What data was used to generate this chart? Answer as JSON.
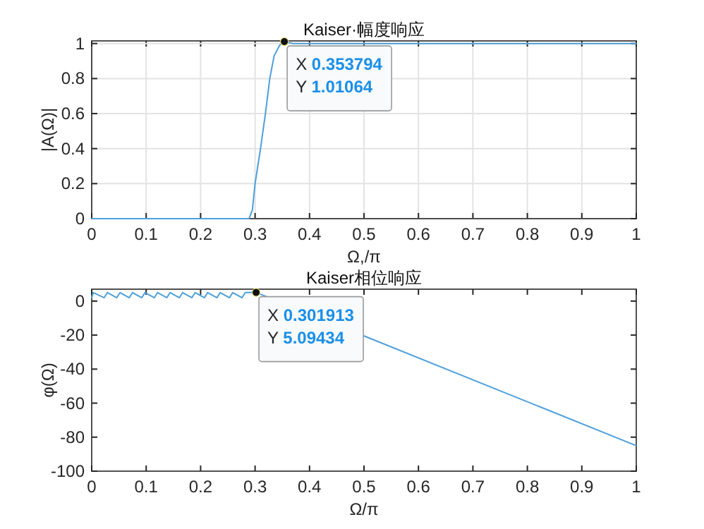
{
  "chart_data": [
    {
      "type": "line",
      "title": "Kaiser·幅度响应",
      "xlabel": "Ω,/π",
      "ylabel": "|A(Ω)|",
      "xlim": [
        0,
        1
      ],
      "ylim": [
        0,
        1.015
      ],
      "xticks": [
        0,
        0.1,
        0.2,
        0.3,
        0.4,
        0.5,
        0.6,
        0.7,
        0.8,
        0.9,
        1
      ],
      "yticks": [
        0,
        0.2,
        0.4,
        0.6,
        0.8,
        1
      ],
      "grid": true,
      "marker": "none",
      "line_style": "solid",
      "series": [
        {
          "color": "#4d9fdb",
          "x": [
            0,
            0.1,
            0.2,
            0.28,
            0.289,
            0.295,
            0.3,
            0.31,
            0.319,
            0.327,
            0.335,
            0.345,
            0.353794,
            0.37,
            0.5,
            0.7,
            1
          ],
          "values": [
            0,
            0,
            0,
            0,
            0,
            0.05,
            0.2,
            0.4,
            0.6,
            0.8,
            0.93,
            0.99,
            1.01064,
            1,
            1,
            1,
            1
          ]
        }
      ],
      "annotations": [
        "X **0.353794**",
        "Y **1.01064**"
      ]
    },
    {
      "type": "line",
      "title": "Kaiser相位响应",
      "xlabel": "Ω/π",
      "ylabel": "φ(Ω)",
      "xlim": [
        0,
        1
      ],
      "ylim": [
        -100,
        7
      ],
      "xticks": [
        0,
        0.1,
        0.2,
        0.3,
        0.4,
        0.5,
        0.6,
        0.7,
        0.8,
        0.9,
        1
      ],
      "yticks": [
        -100,
        -80,
        -60,
        -40,
        -20,
        0
      ],
      "grid": false,
      "marker": "none",
      "line_style": "solid",
      "series": [
        {
          "color": "#4d9fdb",
          "x": [
            0,
            0.003,
            0.023,
            0.029,
            0.046,
            0.052,
            0.069,
            0.075,
            0.092,
            0.098,
            0.115,
            0.121,
            0.138,
            0.144,
            0.161,
            0.167,
            0.184,
            0.19,
            0.207,
            0.213,
            0.23,
            0.236,
            0.253,
            0.259,
            0.276,
            0.282,
            0.301913,
            0.5,
            1
          ],
          "values": [
            2,
            5,
            2,
            5,
            2,
            5,
            2,
            5,
            2,
            5,
            2,
            5,
            2,
            5,
            2,
            5,
            2,
            5,
            2,
            5,
            2,
            5,
            2,
            5,
            2,
            5,
            5.09434,
            -20.5,
            -85
          ]
        }
      ],
      "annotations": [
        "X **0.301913**",
        "Y **5.09434**"
      ]
    }
  ]
}
